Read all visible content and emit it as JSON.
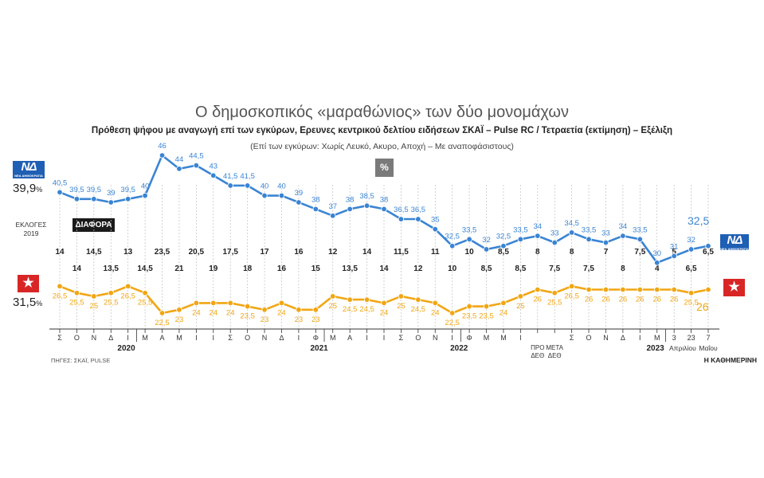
{
  "chart_data": {
    "type": "line",
    "title": "Ο δημοσκοπικός «μαραθώνιος» των δύο μονομάχων",
    "subtitle": "Πρόθεση ψήφου με αναγωγή επί των εγκύρων, Ερευνες κεντρικού δελτίου ειδήσεων ΣΚΑΪ – Pulse RC / Τετραετία (εκτίμηση) – Εξέλιξη",
    "note": "(Επί των εγκύρων: Χωρίς Λευκό, Ακυρο, Αποχή – Με αναποφάσιστους)",
    "unit_badge": "%",
    "diff_label": "ΔΙΑΦΟΡΑ",
    "election_label": [
      "ΕΚΛΟΓΕΣ",
      "2019"
    ],
    "election_values": {
      "nd": "39,9",
      "syriza": "31,5",
      "unit": "%"
    },
    "source": "ΠΗΓΕΣ: ΣΚΑΪ, PULSE",
    "publisher": "Η ΚΑΘΗΜΕΡΙΝΗ",
    "logo_nd": {
      "text": "ΝΔ",
      "caption": "ΝΕΑ ΔΗΜΟΚΡΑΤΙΑ"
    },
    "logo_syriza": {
      "text": "★"
    },
    "series": [
      {
        "name": "ΝΔ",
        "color": "#3a84d3",
        "values": [
          40.5,
          39.5,
          39.5,
          39,
          39.5,
          40,
          46,
          44,
          44.5,
          43,
          41.5,
          41.5,
          40,
          40,
          39,
          38,
          37,
          38,
          38.5,
          38,
          36.5,
          36.5,
          35,
          32.5,
          33.5,
          32,
          32.5,
          33.5,
          34,
          33,
          34.5,
          33.5,
          33,
          34,
          33.5,
          30,
          31,
          32,
          32.5
        ],
        "labels": [
          "40,5",
          "39,5",
          "39,5",
          "39",
          "39,5",
          "40",
          "46",
          "44",
          "44,5",
          "43",
          "41,5",
          "41,5",
          "40",
          "40",
          "39",
          "38",
          "37",
          "38",
          "38,5",
          "38",
          "36,5",
          "36,5",
          "35",
          "32,5",
          "33,5",
          "32",
          "32,5",
          "33,5",
          "34",
          "33",
          "34,5",
          "33,5",
          "33",
          "34",
          "33,5",
          "30",
          "31",
          "32",
          "32,5"
        ]
      },
      {
        "name": "ΣΥΡΙΖΑ",
        "color": "#f1a613",
        "values": [
          26.5,
          25.5,
          25,
          25.5,
          26.5,
          25.5,
          22.5,
          23,
          24,
          24,
          24,
          23.5,
          23,
          24,
          23,
          23,
          25,
          24.5,
          24.5,
          24,
          25,
          24.5,
          24,
          22.5,
          23.5,
          23.5,
          24,
          25,
          26,
          25.5,
          26.5,
          26,
          26,
          26,
          26,
          26,
          26,
          25.5,
          26
        ],
        "labels": [
          "26,5",
          "25,5",
          "25",
          "25,5",
          "26,5",
          "25,5",
          "22,5",
          "23",
          "24",
          "24",
          "24",
          "23,5",
          "23",
          "24",
          "23",
          "23",
          "25",
          "24,5",
          "24,5",
          "24",
          "25",
          "24,5",
          "24",
          "22,5",
          "23,5",
          "23,5",
          "24",
          "25",
          "26",
          "25,5",
          "26,5",
          "26",
          "26",
          "26",
          "26",
          "26",
          "26",
          "25,5",
          "26"
        ]
      }
    ],
    "differences": [
      "14",
      "14",
      "14,5",
      "13,5",
      "13",
      "14,5",
      "23,5",
      "21",
      "20,5",
      "19",
      "17,5",
      "18",
      "17",
      "16",
      "16",
      "15",
      "12",
      "13,5",
      "14",
      "14",
      "11,5",
      "12",
      "11",
      "10",
      "10",
      "8,5",
      "8,5",
      "8,5",
      "8",
      "7,5",
      "8",
      "7,5",
      "7",
      "8",
      "7,5",
      "4",
      "5",
      "6,5",
      "6,5"
    ],
    "x_ticks": [
      "Σ",
      "Ο",
      "Ν",
      "Δ",
      "Ι",
      "Μ",
      "Α",
      "Μ",
      "Ι",
      "Ι",
      "Σ",
      "Ο",
      "Ν",
      "Δ",
      "Ι",
      "Φ",
      "Μ",
      "Α",
      "Ι",
      "Ι",
      "Σ",
      "Ο",
      "Ν",
      "Ι",
      "Φ",
      "Μ",
      "Μ",
      "Ι",
      "ΠΡΟ ΔΕΘ",
      "ΜΕΤΑ ΔΕΘ",
      "Σ",
      "Ο",
      "Ν",
      "Δ",
      "Ι",
      "Μ",
      "3",
      "23",
      "7"
    ],
    "year_labels": [
      "2020",
      "2021",
      "2022",
      "2023",
      "Απριλίου",
      "Μαΐου"
    ],
    "end_values": {
      "nd": "32,5",
      "syriza": "26"
    },
    "ylim": [
      20,
      48
    ]
  }
}
